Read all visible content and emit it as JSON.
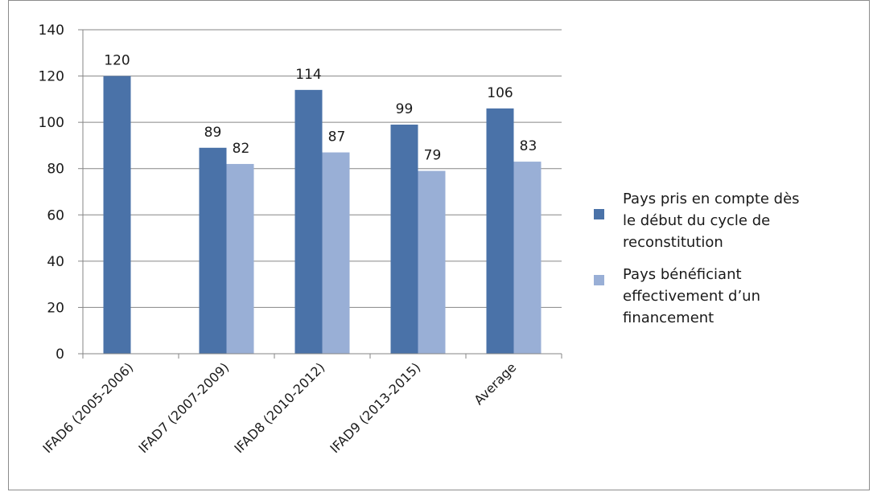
{
  "chart_data": {
    "type": "bar",
    "title": "",
    "xlabel": "",
    "ylabel": "",
    "ylim": [
      0,
      140
    ],
    "yticks": [
      0,
      20,
      40,
      60,
      80,
      100,
      120,
      140
    ],
    "grid": true,
    "legend_position": "right",
    "categories": [
      "IFAD6 (2005-2006)",
      "IFAD7 (2007-2009)",
      "IFAD8 (2010-2012)",
      "IFAD9 (2013-2015)",
      "Average"
    ],
    "series": [
      {
        "name": "Pays pris en compte dès le début du cycle de reconstitution",
        "legend_lines": [
          "Pays pris en compte dès",
          "le début du cycle de",
          "reconstitution"
        ],
        "color": "#4a72a8",
        "values": [
          120,
          89,
          114,
          99,
          106
        ],
        "labels": [
          "120",
          "89",
          "114",
          "99",
          "106"
        ]
      },
      {
        "name": "Pays bénéficiant effectivement d’un financement",
        "legend_lines": [
          "Pays bénéficiant",
          "effectivement d’un",
          "financement"
        ],
        "color": "#99afd6",
        "values": [
          null,
          82,
          87,
          79,
          83
        ],
        "labels": [
          "",
          "82",
          "87",
          "79",
          "83"
        ]
      }
    ]
  }
}
